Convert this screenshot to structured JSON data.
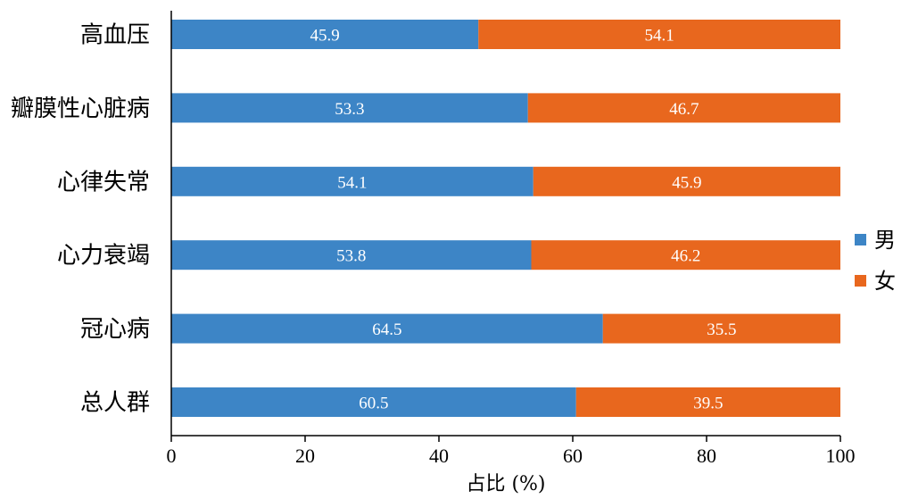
{
  "chart_data": {
    "type": "bar",
    "orientation": "horizontal",
    "stacked": true,
    "categories": [
      "高血压",
      "瓣膜性心脏病",
      "心律失常",
      "心力衰竭",
      "冠心病",
      "总人群"
    ],
    "series": [
      {
        "name": "男",
        "color": "#3d85c6",
        "values": [
          45.9,
          53.3,
          54.1,
          53.8,
          64.5,
          60.5
        ]
      },
      {
        "name": "女",
        "color": "#e8671e",
        "values": [
          54.1,
          46.7,
          45.9,
          46.2,
          35.5,
          39.5
        ]
      }
    ],
    "xlabel": "占比 (%)",
    "xlim": [
      0,
      100
    ],
    "xticks": [
      0,
      20,
      40,
      60,
      80,
      100
    ],
    "grid": false,
    "legend_position": "right",
    "data_labels": true
  }
}
